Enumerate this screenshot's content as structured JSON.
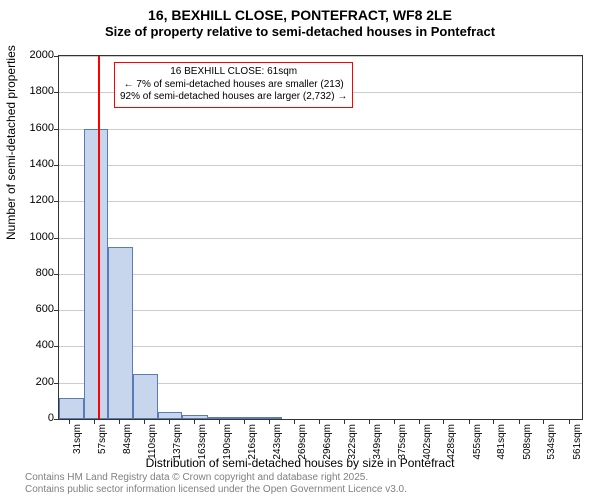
{
  "title_line1": "16, BEXHILL CLOSE, PONTEFRACT, WF8 2LE",
  "title_line2": "Size of property relative to semi-detached houses in Pontefract",
  "ylabel": "Number of semi-detached properties",
  "xlabel": "Distribution of semi-detached houses by size in Pontefract",
  "footnote1": "Contains HM Land Registry data © Crown copyright and database right 2025.",
  "footnote2": "Contains public sector information licensed under the Open Government Licence v3.0.",
  "chart": {
    "type": "bar",
    "ylim": [
      0,
      2000
    ],
    "ytick_step": 200,
    "yticks": [
      0,
      200,
      400,
      600,
      800,
      1000,
      1200,
      1400,
      1600,
      1800,
      2000
    ],
    "xticks": [
      31,
      57,
      84,
      110,
      137,
      163,
      190,
      216,
      243,
      269,
      296,
      322,
      349,
      375,
      402,
      428,
      455,
      481,
      508,
      534,
      561
    ],
    "xtick_unit": "sqm",
    "xlim": [
      20,
      575
    ],
    "bar_fill": "#c7d5ed",
    "bar_stroke": "#5b7bb8",
    "grid_color": "#cccccc",
    "background": "#ffffff",
    "marker_color": "#ff0000",
    "marker_x": 61,
    "bars": [
      {
        "x0": 20,
        "x1": 46,
        "y": 115
      },
      {
        "x0": 46,
        "x1": 72,
        "y": 1600
      },
      {
        "x0": 72,
        "x1": 99,
        "y": 950
      },
      {
        "x0": 99,
        "x1": 125,
        "y": 250
      },
      {
        "x0": 125,
        "x1": 151,
        "y": 40
      },
      {
        "x0": 151,
        "x1": 178,
        "y": 20
      },
      {
        "x0": 178,
        "x1": 204,
        "y": 10
      },
      {
        "x0": 204,
        "x1": 231,
        "y": 8
      },
      {
        "x0": 231,
        "x1": 257,
        "y": 5
      }
    ],
    "annotation": {
      "line1": "16 BEXHILL CLOSE: 61sqm",
      "line2": "← 7% of semi-detached houses are smaller (213)",
      "line3": "92% of semi-detached houses are larger (2,732) →"
    }
  }
}
